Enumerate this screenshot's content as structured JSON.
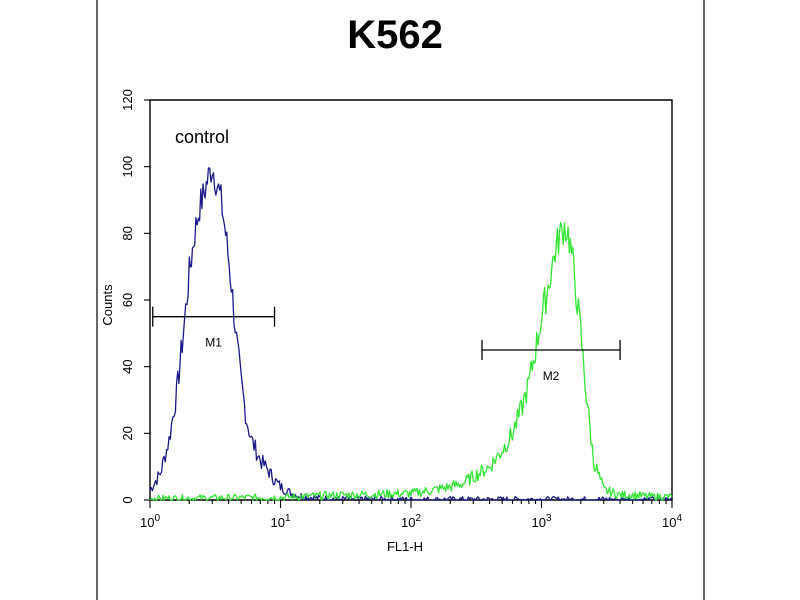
{
  "chart_data": {
    "type": "line",
    "title": "K562",
    "xlabel": "FL1-H",
    "ylabel": "Counts",
    "x_scale": "log",
    "xlim": [
      1,
      10000
    ],
    "ylim": [
      0,
      120
    ],
    "x_ticks": [
      {
        "value": 1,
        "base": "10",
        "exp": "0"
      },
      {
        "value": 10,
        "base": "10",
        "exp": "1"
      },
      {
        "value": 100,
        "base": "10",
        "exp": "2"
      },
      {
        "value": 1000,
        "base": "10",
        "exp": "3"
      },
      {
        "value": 10000,
        "base": "10",
        "exp": "4"
      }
    ],
    "y_ticks": [
      "0",
      "20",
      "40",
      "60",
      "80",
      "100",
      "120"
    ],
    "grid": false,
    "annotation": "control",
    "series": [
      {
        "color": "#1a1a8c",
        "x": [
          1.0,
          1.2,
          1.4,
          1.6,
          1.8,
          2.0,
          2.2,
          2.4,
          2.6,
          2.8,
          3.0,
          3.2,
          3.5,
          3.8,
          4.2,
          4.6,
          5.0,
          5.5,
          6.0,
          7.0,
          8.0,
          9.0,
          10,
          12,
          15,
          20,
          30,
          100,
          1000,
          10000
        ],
        "y": [
          3,
          8,
          18,
          32,
          50,
          68,
          80,
          88,
          92,
          97,
          100,
          96,
          90,
          80,
          65,
          48,
          35,
          24,
          18,
          12,
          9,
          6,
          4,
          2,
          1,
          0.5,
          0.3,
          0.2,
          0.2,
          0.2
        ]
      },
      {
        "color": "#33e633",
        "x": [
          1,
          10,
          30,
          100,
          150,
          200,
          250,
          300,
          400,
          500,
          600,
          700,
          800,
          900,
          1000,
          1100,
          1200,
          1300,
          1400,
          1500,
          1600,
          1700,
          1800,
          2000,
          2200,
          2500,
          3000,
          4000,
          5000,
          7000,
          10000
        ],
        "y": [
          0.5,
          0.8,
          1.5,
          2,
          3,
          4,
          5,
          7,
          10,
          15,
          20,
          27,
          35,
          45,
          55,
          62,
          70,
          76,
          80,
          82,
          80,
          74,
          66,
          50,
          32,
          12,
          3,
          1.5,
          1.5,
          1,
          1
        ]
      }
    ],
    "markers": [
      {
        "label": "M1",
        "x_start": 1.05,
        "x_end": 9,
        "y": 55
      },
      {
        "label": "M2",
        "x_start": 350,
        "x_end": 4000,
        "y": 45
      }
    ]
  }
}
